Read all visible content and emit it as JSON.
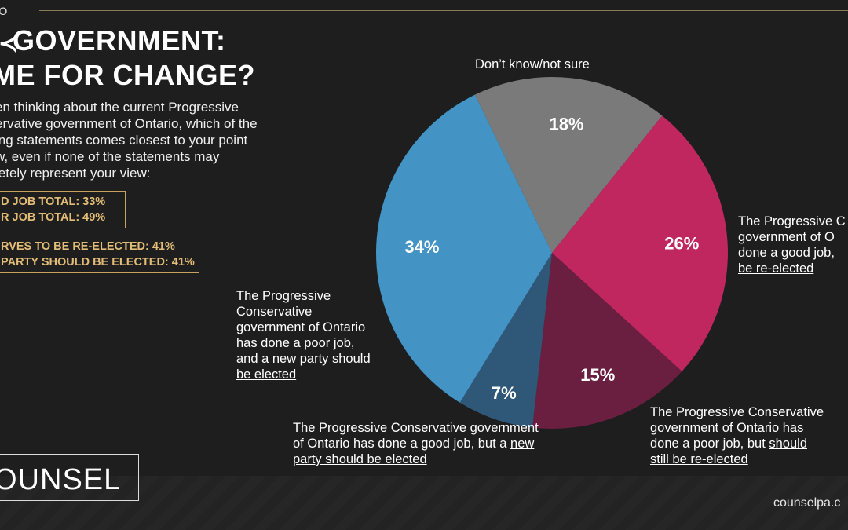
{
  "header": {
    "section": "IO"
  },
  "title": {
    "line1": "GOVERNMENT:",
    "line2": "ME FOR CHANGE?",
    "prefix1": ""
  },
  "question": {
    "lines": [
      "en thinking about the current Progressive",
      "ervative government of Ontario, which of the",
      "ing statements comes closest to your point",
      "w, even if none of the statements may",
      "letely represent your view:"
    ]
  },
  "summary_boxes": [
    {
      "line1": "D JOB TOTAL: 33%",
      "line2": "R JOB TOTAL: 49%"
    },
    {
      "line1": "RVES TO BE RE-ELECTED: 41%",
      "line2": "PARTY SHOULD BE ELECTED: 41%"
    }
  ],
  "chart_data": {
    "type": "pie",
    "slices": [
      {
        "label": "Don’t know/not sure",
        "value": 18,
        "display": "18%",
        "color": "#7a7a7a"
      },
      {
        "label": "The Progressive Conservative government of Ontario has done a good job, and should be re-elected",
        "value": 26,
        "display": "26%",
        "color": "#c0275f"
      },
      {
        "label": "The Progressive Conservative government of Ontario has done a poor job, but should still be re-elected",
        "value": 15,
        "display": "15%",
        "color": "#6b1f40"
      },
      {
        "label": "The Progressive Conservative government of Ontario has done a good job, but a new party should be elected",
        "value": 7,
        "display": "7%",
        "color": "#2f5878"
      },
      {
        "label": "The Progressive Conservative government of Ontario has done a poor job, and a new party should be elected",
        "value": 34,
        "display": "34%",
        "color": "#4393c4"
      }
    ]
  },
  "callouts": {
    "dont_know": "Don’t know/not sure",
    "good_reelect": {
      "l1": "The Progressive C",
      "l2": "government of O",
      "l3": "done a good job,",
      "l4": "be re-elected"
    },
    "poor_reelect": {
      "l1": "The Progressive Conservative",
      "l2": "government of Ontario has",
      "l3a": "done a poor job, but ",
      "l3b": "should",
      "l4": "still be re-elected"
    },
    "good_new": {
      "l1": "The Progressive Conservative government",
      "l2a": "of Ontario has done a good job, but a ",
      "l2b": "new",
      "l3": "party should be elected"
    },
    "poor_new": {
      "l1": "The Progressive",
      "l2": "Conservative",
      "l3": "government of Ontario",
      "l4": "has done a poor job,",
      "l5a": "and a ",
      "l5b": "new party should",
      "l6": "be elected"
    }
  },
  "brand": {
    "logo": "OUNSEL",
    "url": "counselpa.c"
  }
}
